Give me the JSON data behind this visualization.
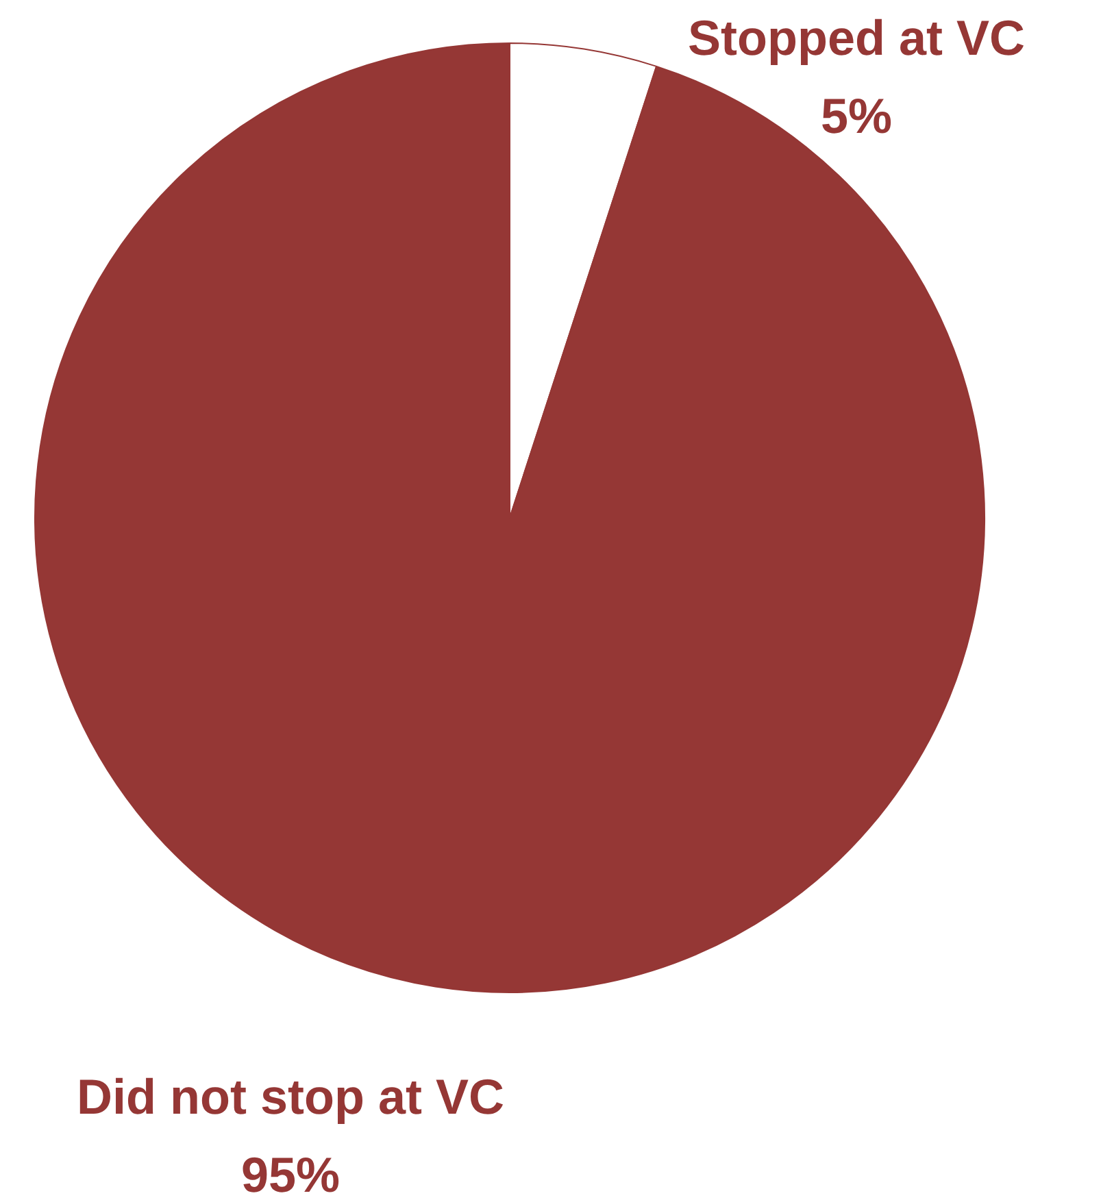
{
  "chart_data": {
    "type": "pie",
    "categories": [
      "Stopped at VC",
      "Did not stop at VC"
    ],
    "values": [
      5,
      95
    ],
    "colors": [
      "#ffffff",
      "#953735"
    ],
    "value_labels": [
      "5%",
      "95%"
    ],
    "legend": false
  }
}
